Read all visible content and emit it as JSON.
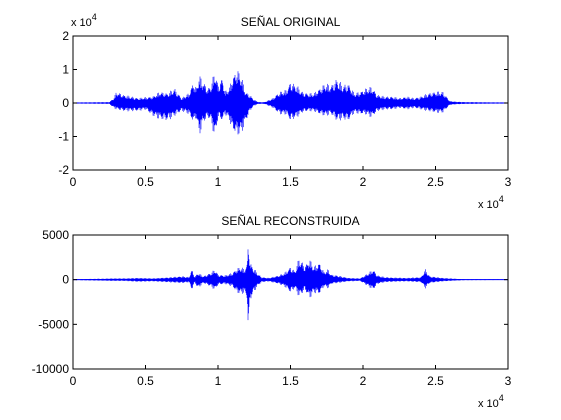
{
  "chart_data": [
    {
      "type": "line",
      "title": "SEÑAL ORIGINAL",
      "xlabel": "",
      "ylabel": "",
      "xlim": [
        0,
        30000
      ],
      "ylim": [
        -20000,
        20000
      ],
      "x_ticks": [
        0,
        5000,
        10000,
        15000,
        20000,
        25000,
        30000
      ],
      "x_tick_labels": [
        "0",
        "0.5",
        "1",
        "1.5",
        "2",
        "2.5",
        "3"
      ],
      "y_ticks": [
        -20000,
        -10000,
        0,
        10000,
        20000
      ],
      "y_tick_labels": [
        "-2",
        "-1",
        "0",
        "1",
        "2"
      ],
      "x_exponent_label": {
        "base": "x 10",
        "exp": "4"
      },
      "y_exponent_label": {
        "base": "x 10",
        "exp": "4"
      },
      "grid": false,
      "series": [
        {
          "color": "#0000ff",
          "envelope": {
            "x": [
              0,
              2500,
              2800,
              3000,
              3500,
              4500,
              5000,
              5500,
              6000,
              6500,
              7000,
              7500,
              7800,
              8000,
              8300,
              8500,
              8700,
              9000,
              9300,
              9500,
              9800,
              10000,
              10300,
              10500,
              10800,
              11000,
              11300,
              11600,
              11900,
              12200,
              12500,
              12800,
              13200,
              13800,
              14000,
              14300,
              14700,
              15000,
              15400,
              15800,
              16200,
              16600,
              17000,
              17400,
              17800,
              18200,
              18600,
              19000,
              19400,
              19800,
              20200,
              20600,
              21000,
              21500,
              22000,
              22500,
              23000,
              23500,
              24000,
              24500,
              25000,
              25500,
              26000,
              26500,
              27000,
              30000
            ],
            "max": [
              200,
              300,
              1500,
              3500,
              2500,
              1500,
              1800,
              2000,
              3500,
              3000,
              4500,
              1500,
              2500,
              3000,
              6500,
              4500,
              8500,
              6500,
              4500,
              5500,
              10000,
              5500,
              8000,
              3500,
              5000,
              8000,
              10500,
              8500,
              3500,
              2500,
              1000,
              300,
              300,
              1500,
              2500,
              3500,
              4000,
              6500,
              5500,
              3500,
              3000,
              3000,
              4500,
              6000,
              5500,
              7500,
              5500,
              6000,
              3000,
              3500,
              4500,
              5000,
              2500,
              2000,
              2000,
              1500,
              2000,
              1500,
              2000,
              3000,
              3500,
              3500,
              600,
              400,
              300,
              200
            ],
            "min": [
              -200,
              -300,
              -1500,
              -2000,
              -2500,
              -2500,
              -2000,
              -4000,
              -5000,
              -5500,
              -4000,
              -2500,
              -3000,
              -3500,
              -6000,
              -4500,
              -10000,
              -6000,
              -4500,
              -5500,
              -11000,
              -4500,
              -5500,
              -3500,
              -5500,
              -8500,
              -10000,
              -9500,
              -6000,
              -2500,
              -800,
              -300,
              -300,
              -1500,
              -2500,
              -3500,
              -3500,
              -5500,
              -4500,
              -3000,
              -2500,
              -2500,
              -3500,
              -4000,
              -3500,
              -5500,
              -5000,
              -5500,
              -3000,
              -3500,
              -3500,
              -4500,
              -2500,
              -2000,
              -2000,
              -1500,
              -2000,
              -1500,
              -2000,
              -2500,
              -3000,
              -3000,
              -600,
              -400,
              -300,
              -200
            ]
          }
        }
      ]
    },
    {
      "type": "line",
      "title": "SEÑAL RECONSTRUIDA",
      "xlabel": "",
      "ylabel": "",
      "xlim": [
        0,
        30000
      ],
      "ylim": [
        -10000,
        5000
      ],
      "x_ticks": [
        0,
        5000,
        10000,
        15000,
        20000,
        25000,
        30000
      ],
      "x_tick_labels": [
        "0",
        "0.5",
        "1",
        "1.5",
        "2",
        "2.5",
        "3"
      ],
      "y_ticks": [
        -10000,
        -5000,
        0,
        5000
      ],
      "y_tick_labels": [
        "-10000",
        "-5000",
        "0",
        "5000"
      ],
      "x_exponent_label": {
        "base": "x 10",
        "exp": "4"
      },
      "grid": false,
      "series": [
        {
          "color": "#0000ff",
          "envelope": {
            "x": [
              0,
              2800,
              3500,
              4500,
              5500,
              6500,
              7500,
              8000,
              8200,
              8400,
              8600,
              9000,
              9500,
              9800,
              10000,
              10500,
              11000,
              11300,
              11600,
              11800,
              12000,
              12100,
              12200,
              12400,
              12700,
              13000,
              13500,
              14200,
              14600,
              15000,
              15300,
              15600,
              16000,
              16300,
              16600,
              17000,
              17300,
              17600,
              17800,
              18200,
              19000,
              19800,
              20400,
              20700,
              21000,
              21500,
              22000,
              23000,
              24000,
              24300,
              24600,
              25500,
              26500,
              27000,
              30000
            ],
            "max": [
              50,
              150,
              150,
              200,
              150,
              250,
              400,
              300,
              1200,
              300,
              800,
              400,
              800,
              1200,
              600,
              500,
              800,
              1300,
              1500,
              1200,
              1800,
              4800,
              2000,
              1500,
              800,
              300,
              200,
              500,
              800,
              1500,
              1000,
              2500,
              1600,
              2400,
              1500,
              2000,
              900,
              1200,
              600,
              500,
              200,
              150,
              800,
              1200,
              500,
              300,
              250,
              200,
              300,
              1200,
              400,
              200,
              100,
              60,
              40
            ],
            "min": [
              -50,
              -150,
              -150,
              -250,
              -200,
              -300,
              -400,
              -300,
              -1200,
              -300,
              -1000,
              -400,
              -800,
              -1200,
              -600,
              -500,
              -800,
              -1500,
              -1700,
              -1500,
              -2200,
              -6500,
              -2500,
              -1700,
              -800,
              -300,
              -200,
              -500,
              -800,
              -1500,
              -1000,
              -2000,
              -1200,
              -2200,
              -1500,
              -1700,
              -800,
              -1000,
              -500,
              -400,
              -200,
              -150,
              -800,
              -1200,
              -500,
              -300,
              -250,
              -200,
              -300,
              -1000,
              -400,
              -200,
              -100,
              -60,
              -40
            ]
          }
        }
      ]
    }
  ]
}
